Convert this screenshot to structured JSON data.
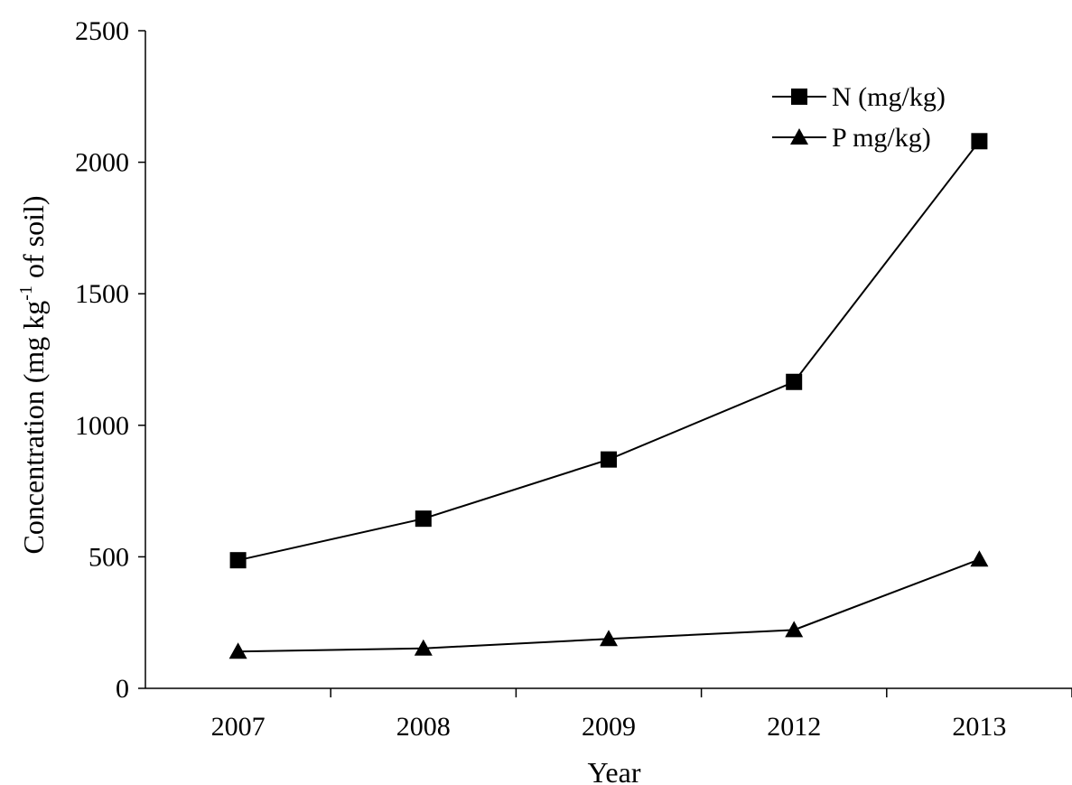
{
  "chart_data": {
    "type": "line",
    "categories": [
      "2007",
      "2008",
      "2009",
      "2012",
      "2013"
    ],
    "series": [
      {
        "name": "N (mg/kg)",
        "marker": "square",
        "values": [
          487,
          645,
          870,
          1165,
          2080
        ]
      },
      {
        "name": "P mg/kg)",
        "marker": "triangle",
        "values": [
          140,
          152,
          188,
          222,
          490
        ]
      }
    ],
    "title": "",
    "xlabel": "Year",
    "ylabel": {
      "prefix": "Concentration (mg kg",
      "superscript": "-1",
      "suffix": " of soil)"
    },
    "ylim": [
      0,
      2500
    ],
    "yticks": [
      "0",
      "500",
      "1000",
      "1500",
      "2000",
      "2500"
    ],
    "grid": false,
    "legend_position": "top-right",
    "line_color": "#000000"
  }
}
